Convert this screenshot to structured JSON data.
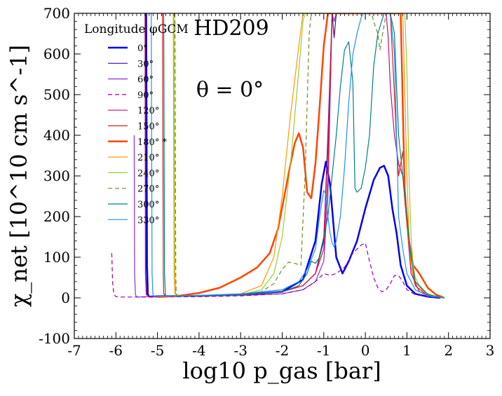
{
  "chart_data": {
    "type": "line",
    "title": "HD209",
    "annotation": "θ = 0°",
    "xlabel": "log10 p_gas [bar]",
    "ylabel": "χ_net [10^10 cm s^-1]",
    "xlim": [
      -7,
      3
    ],
    "ylim": [
      -100,
      700
    ],
    "xticks": [
      -7,
      -6,
      -5,
      -4,
      -3,
      -2,
      -1,
      0,
      1,
      2,
      3
    ],
    "xtick_labels": [
      "-7",
      "-6",
      "-5",
      "-4",
      "-3",
      "-2",
      "-1",
      "0",
      "1",
      "2",
      "3"
    ],
    "yticks": [
      -100,
      0,
      100,
      200,
      300,
      400,
      500,
      600,
      700
    ],
    "ytick_labels": [
      "-100",
      "0",
      "100",
      "200",
      "300",
      "400",
      "500",
      "600",
      "700"
    ],
    "legend_title": "Longitude φGCM",
    "legend_position": "top-left",
    "series": [
      {
        "name": "0°",
        "color": "#0000ee",
        "dash": false,
        "width": 2.5,
        "x": [
          -5.28,
          -5.26,
          -5.24,
          -5.2,
          -5,
          -4,
          -3,
          -2,
          -1.5,
          -1.2,
          -1.05,
          -0.95,
          -0.85,
          -0.7,
          -0.55,
          -0.4,
          -0.2,
          0,
          0.2,
          0.35,
          0.45,
          0.55,
          0.65,
          0.75,
          0.85,
          1.0,
          1.2,
          1.5,
          1.8
        ],
        "y": [
          700,
          80,
          10,
          3,
          4,
          5,
          8,
          15,
          45,
          140,
          280,
          335,
          280,
          100,
          60,
          90,
          140,
          220,
          290,
          320,
          325,
          300,
          220,
          160,
          80,
          30,
          10,
          3,
          0
        ]
      },
      {
        "name": "30°",
        "color": "#3b0f8f",
        "dash": false,
        "width": 1.2,
        "x": [
          -5.26,
          -5.24,
          -5.22,
          -5.2,
          -5,
          -4,
          -3,
          -2,
          -1.5,
          -1.2,
          -1,
          -0.9,
          -0.8,
          -0.75,
          -0.7,
          -0.62
        ],
        "y": [
          700,
          80,
          10,
          2,
          3,
          5,
          8,
          15,
          30,
          60,
          140,
          400,
          700,
          640,
          700,
          700
        ]
      },
      {
        "name": "60°",
        "color": "#8a2be2",
        "dash": false,
        "width": 1.2,
        "x": [
          -5.56,
          -5.55,
          -5.53,
          -5.5,
          -5.3,
          -4,
          -3,
          -2,
          -1.5,
          -1.2,
          -1,
          -0.9,
          -0.8,
          -0.75,
          -0.7
        ],
        "y": [
          400,
          60,
          8,
          2,
          3,
          4,
          6,
          10,
          20,
          40,
          90,
          250,
          700,
          680,
          700
        ]
      },
      {
        "name": "90°",
        "color": "#9400a6",
        "dash": true,
        "width": 1.2,
        "x": [
          -6.1,
          -6.08,
          -6.05,
          -6,
          -5.9,
          -5,
          -4,
          -3,
          -2,
          -1.5,
          -1.2,
          -1,
          -0.85,
          -0.7,
          -0.5,
          -0.3,
          -0.1,
          0,
          0.1,
          0.2,
          0.3,
          0.4,
          0.5,
          0.6,
          0.7,
          0.8,
          0.9,
          1.0,
          1.2,
          1.5,
          1.9
        ],
        "y": [
          110,
          40,
          10,
          3,
          2,
          2,
          3,
          5,
          10,
          20,
          40,
          60,
          55,
          60,
          75,
          110,
          130,
          135,
          90,
          50,
          25,
          15,
          20,
          35,
          55,
          55,
          40,
          20,
          8,
          3,
          0
        ]
      },
      {
        "name": "120°",
        "color": "#c0107a",
        "dash": false,
        "width": 1.2,
        "x": [
          -5.3,
          -5.29,
          -5.27,
          -5.2,
          -5,
          -4,
          -3,
          -2,
          -1.5,
          -1.2,
          -1.0,
          -0.9,
          -0.8,
          -0.7,
          -0.55,
          0.45,
          0.5,
          0.55,
          0.6,
          0.7,
          0.8,
          0.9,
          1.0,
          1.1,
          1.3,
          1.6,
          1.9
        ],
        "y": [
          700,
          60,
          8,
          3,
          3,
          5,
          8,
          15,
          30,
          60,
          150,
          370,
          700,
          700,
          700,
          700,
          700,
          640,
          520,
          400,
          330,
          300,
          180,
          60,
          15,
          3,
          0
        ]
      },
      {
        "name": "150°",
        "color": "#dd1c1c",
        "dash": false,
        "width": 1.2,
        "x": [
          -4.88,
          -4.86,
          -4.85,
          -4.8,
          -4,
          -3,
          -2,
          -1.5,
          -1.2,
          -1,
          -0.9,
          -0.8,
          -0.7,
          0.6,
          0.7,
          0.75,
          0.8,
          0.85,
          0.9,
          1.0,
          1.1,
          1.2,
          1.5,
          1.9
        ],
        "y": [
          700,
          60,
          10,
          4,
          6,
          8,
          15,
          30,
          60,
          120,
          300,
          700,
          700,
          700,
          500,
          380,
          300,
          330,
          360,
          200,
          80,
          30,
          5,
          0
        ]
      },
      {
        "name": "180° *",
        "color": "#ff4500",
        "dash": false,
        "width": 2.5,
        "x": [
          -5,
          -4.5,
          -4,
          -3.5,
          -3,
          -2.6,
          -2.3,
          -2.1,
          -1.95,
          -1.8,
          -1.7,
          -1.6,
          -1.5,
          -1.4,
          -1.3,
          -1.2,
          -1.1,
          -1.0,
          -0.9,
          -0.85,
          0.85,
          0.95,
          1.05,
          1.15,
          1.3,
          1.5,
          1.7,
          1.9
        ],
        "y": [
          2,
          5,
          12,
          25,
          50,
          75,
          110,
          170,
          250,
          330,
          380,
          405,
          370,
          260,
          245,
          330,
          470,
          620,
          700,
          700,
          700,
          250,
          140,
          80,
          60,
          25,
          8,
          0
        ]
      },
      {
        "name": "210°",
        "color": "#ff9900",
        "dash": false,
        "width": 1.2,
        "x": [
          -4.62,
          -4.6,
          -4.58,
          -4.5,
          -4,
          -3,
          -2.5,
          -2.2,
          -2,
          -1.8,
          -1.6,
          -1.5,
          -1.45,
          -1.4,
          -1.35,
          0.8,
          0.9,
          0.95,
          1.0,
          1.05,
          1.1,
          1.2,
          1.4,
          1.7,
          1.9
        ],
        "y": [
          700,
          60,
          10,
          4,
          6,
          10,
          30,
          100,
          250,
          450,
          620,
          700,
          700,
          700,
          700,
          700,
          700,
          500,
          300,
          150,
          80,
          40,
          15,
          3,
          0
        ]
      },
      {
        "name": "240°",
        "color": "#9acd32",
        "dash": false,
        "width": 1.2,
        "x": [
          -4.6,
          -4.58,
          -4.56,
          -4.5,
          -4,
          -3,
          -2.5,
          -2.2,
          -2,
          -1.8,
          -1.6,
          -1.5,
          -1.45,
          -1.4,
          0.95,
          1.0,
          1.05,
          1.1,
          1.15,
          1.2,
          1.3,
          1.5,
          1.7,
          1.9
        ],
        "y": [
          700,
          60,
          10,
          4,
          5,
          8,
          20,
          60,
          150,
          330,
          560,
          680,
          700,
          700,
          700,
          560,
          300,
          150,
          80,
          50,
          30,
          10,
          3,
          0
        ]
      },
      {
        "name": "270°",
        "color": "#6b8e23",
        "dash": true,
        "width": 1.2,
        "x": [
          -4.58,
          -4.56,
          -4.55,
          -4.5,
          -4,
          -3,
          -2.5,
          -2.2,
          -2,
          -1.85,
          -1.7,
          -1.55,
          -1.45,
          -1.35,
          -1.3,
          -1.25,
          0.15,
          0.2,
          0.3,
          0.35,
          0.4,
          0.5,
          0.55,
          0.6,
          0.65,
          0.8,
          0.9,
          1.0
        ],
        "y": [
          700,
          60,
          10,
          4,
          5,
          8,
          15,
          35,
          70,
          88,
          85,
          80,
          300,
          650,
          700,
          700,
          700,
          680,
          650,
          610,
          640,
          700,
          700,
          700,
          700,
          700,
          700,
          700
        ]
      },
      {
        "name": "300°",
        "color": "#008080",
        "dash": false,
        "width": 1.2,
        "x": [
          -4.85,
          -4.83,
          -4.81,
          -4.8,
          -4,
          -3,
          -2,
          -1.6,
          -1.4,
          -1.3,
          -1.2,
          -1.1,
          -0.9,
          -0.7,
          -0.6,
          -0.5,
          -0.4,
          -0.3,
          -0.25,
          -0.2,
          -0.1,
          0.0,
          0.1,
          0.2,
          0.3,
          0.45,
          0.6,
          0.7,
          0.75,
          0.8,
          0.9,
          1.0,
          1.1,
          1.2,
          1.5,
          1.9
        ],
        "y": [
          700,
          60,
          10,
          4,
          5,
          8,
          15,
          30,
          60,
          90,
          85,
          100,
          200,
          400,
          520,
          610,
          630,
          530,
          270,
          260,
          270,
          320,
          400,
          570,
          650,
          700,
          700,
          650,
          520,
          400,
          300,
          200,
          100,
          40,
          8,
          0
        ]
      },
      {
        "name": "330°",
        "color": "#1e90ff",
        "dash": false,
        "width": 1.2,
        "x": [
          -5.15,
          -5.13,
          -5.11,
          -5.1,
          -5,
          -4,
          -3,
          -2,
          -1.6,
          -1.4,
          -1.2,
          -1.1,
          -1.0,
          -0.95,
          -0.9,
          -0.85,
          -0.8,
          -0.75,
          -0.7,
          -0.6,
          -0.5,
          -0.4,
          -0.3,
          -0.2,
          -0.1,
          -0.05,
          0.6,
          0.7,
          0.75,
          0.8,
          0.9,
          1.0,
          1.2,
          1.5,
          1.9
        ],
        "y": [
          700,
          60,
          10,
          4,
          4,
          6,
          10,
          20,
          40,
          70,
          120,
          200,
          265,
          255,
          200,
          160,
          135,
          125,
          140,
          200,
          320,
          480,
          600,
          650,
          690,
          700,
          700,
          600,
          400,
          200,
          120,
          60,
          20,
          5,
          0
        ]
      }
    ]
  }
}
